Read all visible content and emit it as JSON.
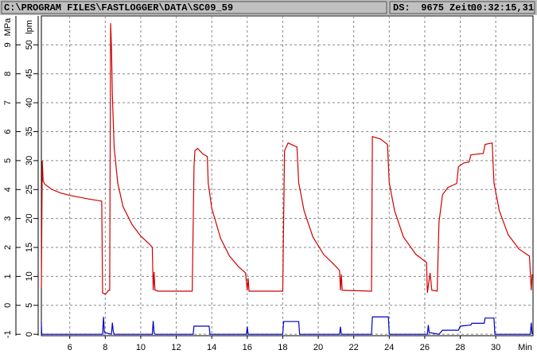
{
  "header": {
    "path": "C:\\PROGRAM FILES\\FASTLOGGER\\DATA\\SC09_59",
    "ds_label": "DS:",
    "ds": 9675,
    "time_label": "Zeit:",
    "time": "00:32:15,31"
  },
  "chart_data": {
    "type": "line",
    "y_label": "MPa",
    "y2_label": "lpm",
    "x_label": "Min",
    "xlim": [
      4.4,
      32.1
    ],
    "xticks": [
      6,
      8,
      10,
      12,
      14,
      16,
      18,
      20,
      22,
      24,
      26,
      28,
      30
    ],
    "ylim": [
      -1.05,
      10
    ],
    "yticks": [
      -1,
      0,
      1,
      2,
      3,
      4,
      5,
      6,
      7,
      8,
      9
    ],
    "y2lim": [
      -0.25,
      55
    ],
    "y2ticks": [
      0,
      5,
      10,
      15,
      20,
      25,
      30,
      35,
      40,
      45,
      50
    ],
    "grid": true,
    "series": [
      {
        "color": "#d00000",
        "x": [
          4.4,
          4.45,
          4.5,
          4.6,
          5,
          5.5,
          6,
          7,
          7.8,
          7.85,
          8.0,
          8.2,
          8.25,
          8.3,
          8.35,
          8.4,
          8.5,
          8.7,
          9.0,
          9.5,
          10,
          10.5,
          10.65,
          10.7,
          10.75,
          10.8,
          11,
          12.9,
          13.0,
          13.05,
          13.2,
          13.5,
          13.75,
          13.8,
          14,
          14.5,
          15,
          15.5,
          15.9,
          16,
          16.05,
          16.1,
          18.0,
          18.1,
          18.3,
          18.8,
          18.9,
          19.2,
          19.7,
          20.3,
          21,
          21.2,
          21.25,
          21.3,
          21.35,
          23.0,
          23.05,
          23.5,
          23.9,
          24.0,
          24.3,
          24.8,
          25.5,
          26.1,
          26.15,
          26.3,
          26.4,
          26.7,
          26.8,
          27.0,
          27.3,
          27.8,
          27.9,
          28.2,
          28.5,
          28.6,
          29.3,
          29.4,
          29.8,
          29.9,
          30.2,
          30.7,
          31.3,
          31.9,
          32.0,
          32.05
        ],
        "values": [
          0.6,
          5.0,
          4.3,
          4.18,
          4.0,
          3.88,
          3.8,
          3.68,
          3.6,
          0.43,
          0.38,
          0.52,
          0.52,
          9.75,
          8.9,
          7.27,
          5.47,
          4.23,
          3.41,
          2.8,
          2.39,
          2.11,
          2.0,
          0.52,
          1.15,
          0.52,
          0.49,
          0.49,
          4.79,
          5.34,
          5.42,
          5.23,
          5.14,
          4.23,
          3.35,
          2.31,
          1.7,
          1.34,
          1.12,
          0.52,
          0.93,
          0.49,
          0.49,
          5.34,
          5.61,
          5.47,
          4.23,
          3.27,
          2.36,
          1.76,
          1.34,
          1.2,
          0.52,
          1.07,
          0.52,
          0.49,
          5.83,
          5.75,
          5.56,
          4.23,
          3.27,
          2.36,
          1.76,
          1.48,
          0.43,
          1.12,
          0.52,
          0.49,
          2.86,
          3.82,
          4.07,
          4.21,
          4.79,
          4.92,
          4.95,
          5.2,
          5.25,
          5.56,
          5.61,
          4.23,
          3.27,
          2.44,
          1.95,
          1.7,
          0.52,
          1.07
        ]
      },
      {
        "color": "#0000c8",
        "axis": "y2",
        "x": [
          4.4,
          4.42,
          7.85,
          7.9,
          7.95,
          8.35,
          8.4,
          8.45,
          8.5,
          10.65,
          10.7,
          10.75,
          10.8,
          12.95,
          13.0,
          13.85,
          13.9,
          15.95,
          16.0,
          16.05,
          18.0,
          18.05,
          18.9,
          18.95,
          21.2,
          21.25,
          21.3,
          23.0,
          23.05,
          23.95,
          24.0,
          26.15,
          26.2,
          26.25,
          26.8,
          27.0,
          27.9,
          28.0,
          28.6,
          28.65,
          29.35,
          29.4,
          29.9,
          29.95,
          31.95,
          32.0,
          32.05
        ],
        "values": [
          2.0,
          0,
          0,
          3.0,
          0.3,
          0,
          2.0,
          0.5,
          0,
          0,
          2.3,
          0.3,
          0,
          0,
          1.4,
          1.4,
          0,
          0,
          1.3,
          0,
          0,
          2.2,
          2.2,
          0,
          0,
          1.3,
          0,
          0,
          3.0,
          3.0,
          0,
          0,
          1.6,
          0.3,
          0,
          0.7,
          0.7,
          1.4,
          1.6,
          1.9,
          1.9,
          2.8,
          2.8,
          0,
          0,
          2.0,
          0
        ]
      }
    ]
  }
}
